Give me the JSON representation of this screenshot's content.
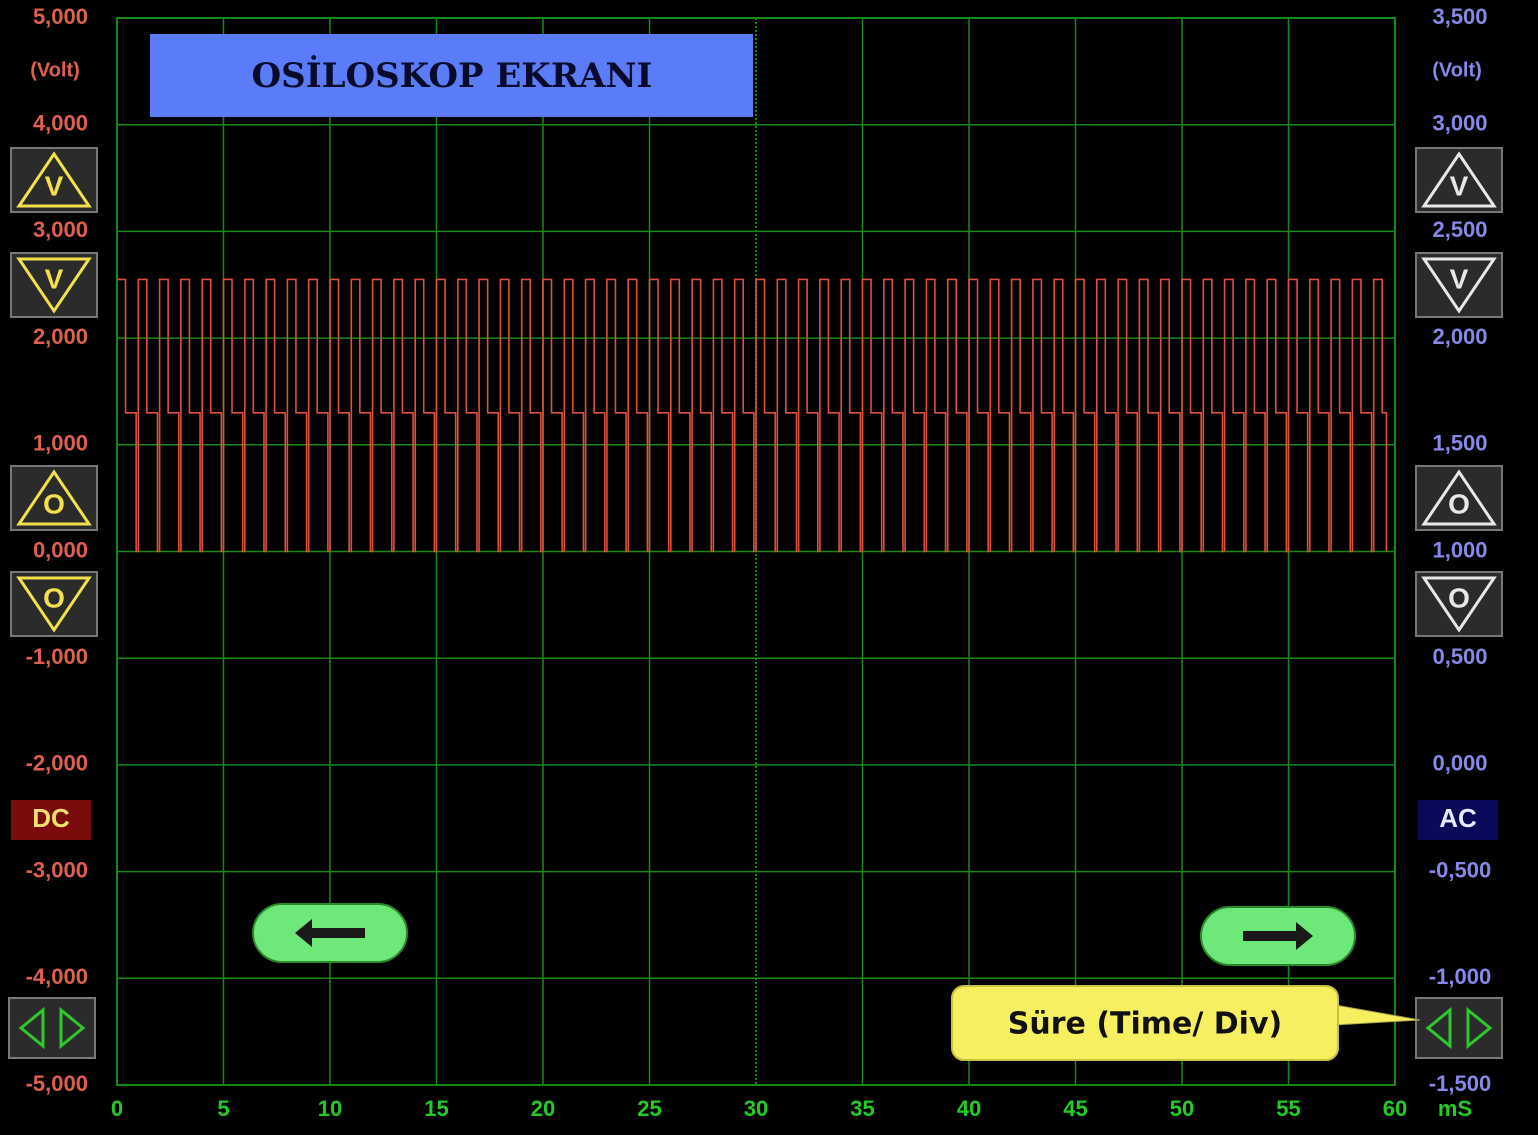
{
  "title": "OSİLOSKOP  EKRANI",
  "chart_data": {
    "type": "line",
    "xlim": [
      0,
      60
    ],
    "xticks": [
      0,
      5,
      10,
      15,
      20,
      25,
      30,
      35,
      40,
      45,
      50,
      55,
      60
    ],
    "x_unit": "mS",
    "ylim": [
      -5,
      5
    ],
    "yticks": [
      {
        "value": 5,
        "label": "5,000"
      },
      {
        "value": 4,
        "label": "4,000"
      },
      {
        "value": 3,
        "label": "3,000"
      },
      {
        "value": 2,
        "label": "2,000"
      },
      {
        "value": 1,
        "label": "1,000"
      },
      {
        "value": 0,
        "label": "0,000"
      },
      {
        "value": -1,
        "label": "-1,000"
      },
      {
        "value": -2,
        "label": "-2,000"
      },
      {
        "value": -3,
        "label": "-3,000"
      },
      {
        "value": -4,
        "label": "-4,000"
      },
      {
        "value": -5,
        "label": "-5,000"
      }
    ],
    "y_unit": "(Volt)",
    "y2lim": [
      -1.5,
      3.5
    ],
    "y2ticks": [
      {
        "value": 3.5,
        "label": "3,500"
      },
      {
        "value": 3,
        "label": "3,000"
      },
      {
        "value": 2.5,
        "label": "2,500"
      },
      {
        "value": 2,
        "label": "2,000"
      },
      {
        "value": 1.5,
        "label": "1,500"
      },
      {
        "value": 1,
        "label": "1,000"
      },
      {
        "value": 0.5,
        "label": "0,500"
      },
      {
        "value": 0,
        "label": "0,000"
      },
      {
        "value": -0.5,
        "label": "-0,500"
      },
      {
        "value": -1,
        "label": "-1,000"
      },
      {
        "value": -1.5,
        "label": "-1,500"
      }
    ],
    "y2_unit": "(Volt)",
    "grid": true,
    "grid_color": "#158a15",
    "signal": {
      "color": "#e0503c",
      "start": 0,
      "end": 59.6,
      "period": 1,
      "high": 2.55,
      "mid": 1.3,
      "low": 0,
      "high_width": 0.4,
      "mid_width": 0.5
    }
  },
  "controls": {
    "left_buttons": [
      "V",
      "V",
      "O",
      "O"
    ],
    "right_buttons": [
      "V",
      "V",
      "O",
      "O"
    ],
    "left_mode": "DC",
    "right_mode": "AC",
    "tooltip": "Süre (Time/ Div)"
  }
}
